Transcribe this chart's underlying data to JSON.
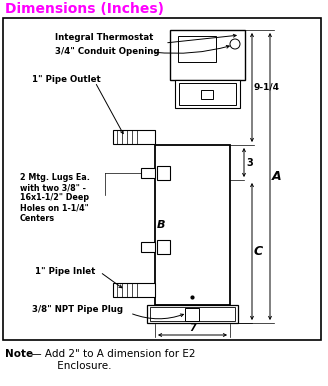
{
  "title": "Dimensions (Inches)",
  "title_color": "#FF00FF",
  "bg": "#FFFFFF",
  "labels": {
    "integral_thermostat": "Integral Thermostat",
    "conduit": "3/4\" Conduit Opening",
    "pipe_outlet": "1\" Pipe Outlet",
    "mtg_lugs": "2 Mtg. Lugs Ea.\nwith two 3/8\" -\n16x1-1/2\" Deep\nHoles on 1-1/4\"\nCenters",
    "pipe_inlet": "1\" Pipe Inlet",
    "npt_plug": "3/8\" NPT Pipe Plug",
    "dim_A": "A",
    "dim_B": "B",
    "dim_C": "C",
    "dim_9_14": "9-1/4",
    "dim_3": "3",
    "dim_7": "7"
  },
  "note_bold": "Note",
  "note_rest": " — Add 2\" to A dimension for E2\n         Enclosure."
}
